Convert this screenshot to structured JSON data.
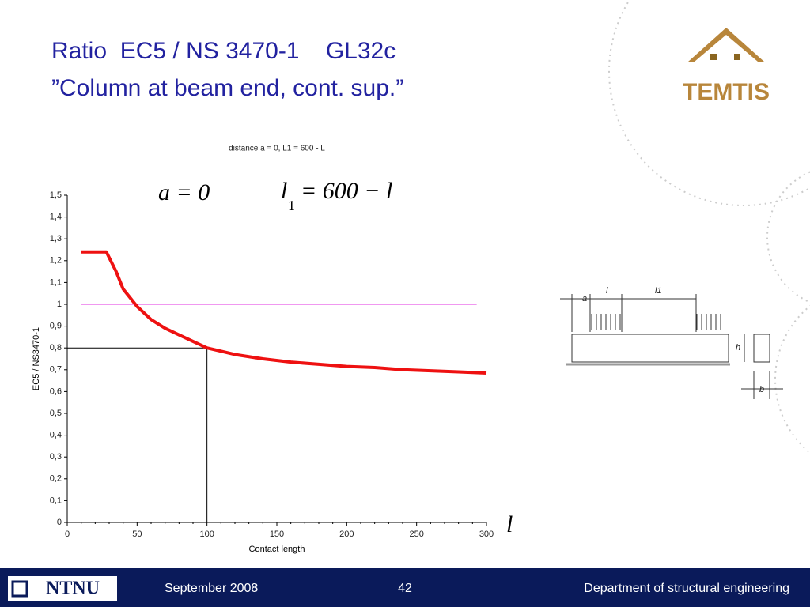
{
  "slide": {
    "title_lines": [
      "Ratio  EC5 / NS 3470-1    GL32c",
      "”Column at beam end, cont. sup.”"
    ],
    "logo": "TEMTIS"
  },
  "formulas": {
    "a_eq": "a = 0",
    "l1_var": "l",
    "l1_sub": "1",
    "l1_rest": "= 600 − l",
    "x_symbol": "l"
  },
  "diagram": {
    "labels": [
      "a",
      "l",
      "l1",
      "h",
      "b"
    ]
  },
  "footer": {
    "left_logo": "NTNU",
    "date": "September 2008",
    "page": "42",
    "department": "Department of structural engineering"
  },
  "chart_data": {
    "type": "line",
    "title": "distance a = 0, L1 = 600 - L",
    "x_label": "Contact length",
    "y_label": "EC5 / NS3470-1",
    "xlim": [
      0,
      300
    ],
    "xticks": [
      0,
      50,
      100,
      150,
      200,
      250,
      300
    ],
    "ylim": [
      0,
      1.5
    ],
    "yticks": [
      0,
      {
        "value": 0.1,
        "label": "0,1"
      },
      {
        "value": 0.2,
        "label": "0,2"
      },
      {
        "value": 0.3,
        "label": "0,3"
      },
      {
        "value": 0.4,
        "label": "0,4"
      },
      {
        "value": 0.5,
        "label": "0,5"
      },
      {
        "value": 0.6,
        "label": "0,6"
      },
      {
        "value": 0.7,
        "label": "0,7"
      },
      {
        "value": 0.8,
        "label": "0,8"
      },
      {
        "value": 0.9,
        "label": "0,9"
      },
      1,
      {
        "value": 1.1,
        "label": "1,1"
      },
      {
        "value": 1.2,
        "label": "1,2"
      },
      {
        "value": 1.3,
        "label": "1,3"
      },
      {
        "value": 1.4,
        "label": "1,4"
      },
      {
        "value": 1.5,
        "label": "1,5"
      }
    ],
    "series": [
      {
        "color": "#ee1111",
        "x": [
          10,
          28,
          35,
          40,
          50,
          60,
          70,
          80,
          90,
          100,
          120,
          140,
          160,
          180,
          200,
          220,
          240,
          260,
          280,
          300
        ],
        "values": [
          1.24,
          1.24,
          1.15,
          1.07,
          0.99,
          0.93,
          0.89,
          0.86,
          0.83,
          0.8,
          0.77,
          0.75,
          0.735,
          0.725,
          0.715,
          0.71,
          0.7,
          0.695,
          0.69,
          0.685
        ]
      }
    ],
    "hline": {
      "y": 1,
      "x": [
        10,
        293
      ],
      "color": "#e030e0"
    },
    "crosshair": {
      "x": 100,
      "y": 0.8,
      "color": "#000000"
    }
  }
}
